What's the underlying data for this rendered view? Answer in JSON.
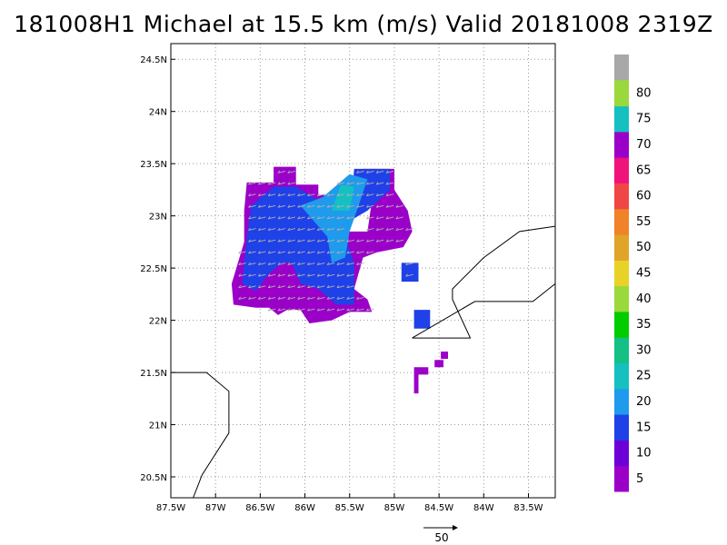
{
  "title": "181008H1 Michael at 15.5 km (m/s) Valid 20181008 2319Z",
  "map": {
    "lon_range": [
      -87.5,
      -83.2
    ],
    "lat_range": [
      20.3,
      24.65
    ],
    "lon_ticks": [
      {
        "value": -87.5,
        "label": "87.5W"
      },
      {
        "value": -87,
        "label": "87W"
      },
      {
        "value": -86.5,
        "label": "86.5W"
      },
      {
        "value": -86,
        "label": "86W"
      },
      {
        "value": -85.5,
        "label": "85.5W"
      },
      {
        "value": -85,
        "label": "85W"
      },
      {
        "value": -84.5,
        "label": "84.5W"
      },
      {
        "value": -84,
        "label": "84W"
      },
      {
        "value": -83.5,
        "label": "83.5W"
      }
    ],
    "lat_ticks": [
      {
        "value": 20.5,
        "label": "20.5N"
      },
      {
        "value": 21,
        "label": "21N"
      },
      {
        "value": 21.5,
        "label": "21.5N"
      },
      {
        "value": 22,
        "label": "22N"
      },
      {
        "value": 22.5,
        "label": "22.5N"
      },
      {
        "value": 23,
        "label": "23N"
      },
      {
        "value": 23.5,
        "label": "23.5N"
      },
      {
        "value": 24,
        "label": "24N"
      },
      {
        "value": 24.5,
        "label": "24.5N"
      }
    ],
    "grid": true,
    "coastlines": [
      [
        [
          -87.5,
          21.5
        ],
        [
          -87.1,
          21.5
        ],
        [
          -86.85,
          21.32
        ],
        [
          -86.85,
          20.92
        ],
        [
          -87.15,
          20.52
        ],
        [
          -87.25,
          20.3
        ]
      ],
      [
        [
          -84.8,
          21.83
        ],
        [
          -84.15,
          21.83
        ],
        [
          -84.35,
          22.2
        ],
        [
          -84.35,
          22.3
        ],
        [
          -84,
          22.6
        ],
        [
          -83.6,
          22.85
        ],
        [
          -83.2,
          22.9
        ]
      ],
      [
        [
          -84.8,
          21.83
        ],
        [
          -84.1,
          22.18
        ],
        [
          -83.45,
          22.18
        ],
        [
          -83.2,
          22.35
        ]
      ]
    ]
  },
  "wind_regions": [
    {
      "level": "5-10",
      "color": "#9b00c9",
      "polygons": [
        [
          [
            -86.65,
            23.32
          ],
          [
            -86.35,
            23.32
          ],
          [
            -86.35,
            23.47
          ],
          [
            -86.1,
            23.47
          ],
          [
            -86.1,
            23.3
          ],
          [
            -85.85,
            23.3
          ],
          [
            -85.85,
            23.2
          ],
          [
            -85.55,
            23.2
          ],
          [
            -85.55,
            22.85
          ],
          [
            -85.3,
            22.85
          ],
          [
            -85.25,
            23.15
          ],
          [
            -85.2,
            23.3
          ],
          [
            -85.35,
            23.45
          ],
          [
            -85.0,
            23.45
          ],
          [
            -85.0,
            23.25
          ],
          [
            -84.85,
            23.05
          ],
          [
            -84.8,
            22.85
          ],
          [
            -84.9,
            22.7
          ],
          [
            -85.2,
            22.65
          ],
          [
            -85.35,
            22.6
          ],
          [
            -85.45,
            22.3
          ],
          [
            -85.3,
            22.2
          ],
          [
            -85.25,
            22.08
          ],
          [
            -85.5,
            22.08
          ],
          [
            -85.7,
            22.0
          ],
          [
            -85.95,
            21.97
          ],
          [
            -86.05,
            22.1
          ],
          [
            -86.2,
            22.1
          ],
          [
            -86.3,
            22.05
          ],
          [
            -86.4,
            22.12
          ],
          [
            -86.55,
            22.12
          ],
          [
            -86.8,
            22.15
          ],
          [
            -86.82,
            22.35
          ],
          [
            -86.75,
            22.55
          ],
          [
            -86.68,
            22.75
          ],
          [
            -86.68,
            23.05
          ]
        ]
      ]
    },
    {
      "level": "10-15",
      "color": "#1f41e8",
      "polygons": [
        [
          [
            -86.35,
            23.28
          ],
          [
            -86.1,
            23.28
          ],
          [
            -85.85,
            23.15
          ],
          [
            -85.65,
            23.05
          ],
          [
            -85.55,
            22.8
          ],
          [
            -85.45,
            22.55
          ],
          [
            -85.45,
            22.15
          ],
          [
            -85.65,
            22.15
          ],
          [
            -85.85,
            22.3
          ],
          [
            -86.05,
            22.35
          ],
          [
            -86.15,
            22.55
          ],
          [
            -86.25,
            22.55
          ],
          [
            -86.4,
            22.45
          ],
          [
            -86.55,
            22.28
          ],
          [
            -86.7,
            22.35
          ],
          [
            -86.65,
            22.8
          ],
          [
            -86.6,
            23.1
          ]
        ],
        [
          [
            -85.45,
            23.45
          ],
          [
            -85.05,
            23.45
          ],
          [
            -85.05,
            23.25
          ],
          [
            -85.3,
            23.05
          ],
          [
            -85.5,
            22.95
          ]
        ],
        [
          [
            -84.92,
            22.55
          ],
          [
            -84.73,
            22.55
          ],
          [
            -84.73,
            22.37
          ],
          [
            -84.92,
            22.37
          ]
        ],
        [
          [
            -84.78,
            22.1
          ],
          [
            -84.6,
            22.1
          ],
          [
            -84.6,
            21.92
          ],
          [
            -84.78,
            21.92
          ]
        ]
      ]
    },
    {
      "level": "15-20",
      "color": "#1e9bec",
      "polygons": [
        [
          [
            -86.05,
            23.1
          ],
          [
            -85.8,
            23.18
          ],
          [
            -85.5,
            23.4
          ],
          [
            -85.3,
            23.35
          ],
          [
            -85.4,
            23.1
          ],
          [
            -85.5,
            22.85
          ],
          [
            -85.55,
            22.6
          ],
          [
            -85.7,
            22.55
          ],
          [
            -85.75,
            22.8
          ],
          [
            -85.9,
            22.95
          ]
        ]
      ]
    },
    {
      "level": "20-25",
      "color": "#15c0c0",
      "polygons": [
        [
          [
            -85.7,
            23.05
          ],
          [
            -85.6,
            23.3
          ],
          [
            -85.45,
            23.28
          ],
          [
            -85.5,
            23.05
          ]
        ]
      ]
    },
    {
      "level": "5-10",
      "color": "#9b00c9",
      "polygons": [
        [
          [
            -84.78,
            21.55
          ],
          [
            -84.62,
            21.55
          ],
          [
            -84.62,
            21.48
          ],
          [
            -84.73,
            21.48
          ],
          [
            -84.73,
            21.3
          ],
          [
            -84.78,
            21.3
          ]
        ],
        [
          [
            -84.55,
            21.62
          ],
          [
            -84.45,
            21.62
          ],
          [
            -84.45,
            21.55
          ],
          [
            -84.55,
            21.55
          ]
        ],
        [
          [
            -84.48,
            21.7
          ],
          [
            -84.4,
            21.7
          ],
          [
            -84.4,
            21.63
          ],
          [
            -84.48,
            21.63
          ]
        ]
      ]
    }
  ],
  "colorbar": {
    "top_color": "#a8a8a8",
    "bands": [
      {
        "color": "#9b00c9"
      },
      {
        "color": "#6d00d6"
      },
      {
        "color": "#1f41e8"
      },
      {
        "color": "#1e9bec"
      },
      {
        "color": "#15c0c0"
      },
      {
        "color": "#15c085"
      },
      {
        "color": "#00cc00"
      },
      {
        "color": "#9ad83c"
      },
      {
        "color": "#e8d228"
      },
      {
        "color": "#e0a428"
      },
      {
        "color": "#f08228"
      },
      {
        "color": "#f04646"
      },
      {
        "color": "#f0147a"
      },
      {
        "color": "#9b00c9"
      },
      {
        "color": "#15c0c0"
      },
      {
        "color": "#9ad83c"
      }
    ],
    "labels": [
      "5",
      "10",
      "15",
      "20",
      "25",
      "30",
      "35",
      "40",
      "45",
      "50",
      "55",
      "60",
      "65",
      "70",
      "75",
      "80"
    ]
  },
  "vector_key": {
    "label": "50"
  }
}
